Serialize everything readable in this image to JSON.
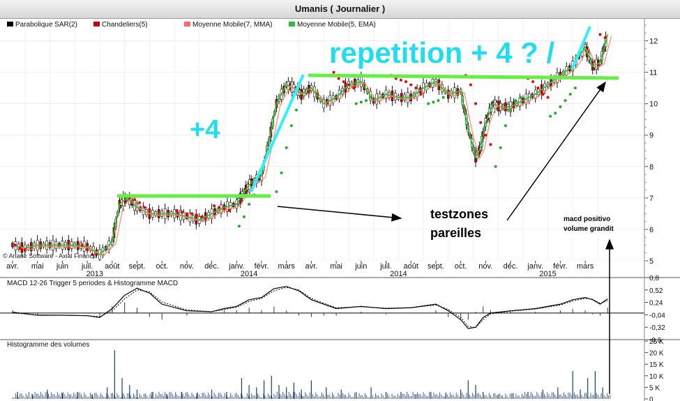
{
  "window": {
    "title": "Umanis  ( Journalier )"
  },
  "legend": [
    {
      "label": "Parabolique SAR(2)",
      "color": "#000000"
    },
    {
      "label": "Chandeliers(5)",
      "color": "#cc0000"
    },
    {
      "label": "Moyenne Mobile(7, MMA)",
      "color": "#ff6666"
    },
    {
      "label": "Moyenne Mobile(5, EMA)",
      "color": "#33bb33"
    }
  ],
  "copyright": "© Ariane Software - Axial Finance",
  "annotations": {
    "plus4": "+4",
    "repetition": "repetition + 4 ? /",
    "testzones_line1": "testzones",
    "testzones_line2": "pareilles",
    "macd_line1": "macd positivo",
    "macd_line2": "volume grandit"
  },
  "colors": {
    "price_green": "#33bb33",
    "sar_red": "#ee0000",
    "hline_green": "#66ee44",
    "cyan": "#33eeff",
    "annot_cyan": "#22ddee"
  },
  "chart_data": [
    {
      "type": "line",
      "title": "Umanis ( Journalier )",
      "y_axis_ticks": [
        "5",
        "6",
        "7",
        "8",
        "9",
        "10",
        "11",
        "12"
      ],
      "ylim": [
        5,
        12.7
      ],
      "x_tick_labels": [
        "avr.",
        "mai",
        "juin",
        "juil.",
        "août",
        "sept.",
        "oct.",
        "nov.",
        "déc.",
        "janv.",
        "févr.",
        "mars",
        "avr.",
        "mai",
        "juin",
        "juil.",
        "août",
        "sept.",
        "oct.",
        "nov.",
        "déc.",
        "janv.",
        "févr.",
        "mars"
      ],
      "year_labels": [
        "2013",
        "2014",
        "2014",
        "2015"
      ],
      "series": [
        {
          "name": "Moyenne Mobile(5, EMA)",
          "x_month_index": [
            0,
            0.5,
            1,
            1.5,
            2,
            2.5,
            3,
            3.5,
            4,
            4.3,
            4.6,
            5,
            5.5,
            6,
            6.5,
            7,
            7.5,
            8,
            8.5,
            9,
            9.3,
            9.6,
            10,
            10.3,
            10.6,
            11,
            11.3,
            11.6,
            12,
            12.5,
            13,
            13.5,
            14,
            14.5,
            15,
            15.5,
            16,
            16.5,
            17,
            17.5,
            18,
            18.3,
            18.6,
            18.8,
            19,
            19.3,
            19.6,
            20,
            20.5,
            21,
            21.5,
            22,
            22.5,
            23,
            23.3,
            23.6,
            23.9
          ],
          "values": [
            5.5,
            5.4,
            5.5,
            5.5,
            5.5,
            5.5,
            5.45,
            5.2,
            5.6,
            6.8,
            7.0,
            6.7,
            6.5,
            6.5,
            6.5,
            6.4,
            6.3,
            6.5,
            6.7,
            6.8,
            7.2,
            7.5,
            7.7,
            8.8,
            10.0,
            10.6,
            10.5,
            10.3,
            10.5,
            10.0,
            10.2,
            10.6,
            10.7,
            10.1,
            10.3,
            10.2,
            10.2,
            10.5,
            10.7,
            10.3,
            10.4,
            9.2,
            8.3,
            8.6,
            9.4,
            10.0,
            9.9,
            9.9,
            10.1,
            10.3,
            10.6,
            10.9,
            11.2,
            11.8,
            11.2,
            11.3,
            12.2
          ]
        },
        {
          "name": "Parabolique SAR(2) red",
          "x_month_index": [
            0.1,
            0.3,
            0.5,
            2.8,
            3.0,
            3.2,
            4.7,
            4.9,
            5.1,
            5.3,
            5.5,
            6.6,
            6.8,
            7.0,
            7.2,
            7.4,
            7.6,
            8.1,
            8.3,
            8.5,
            8.7,
            12.9,
            13.1,
            13.3,
            13.5,
            13.7,
            15.2,
            15.4,
            15.6,
            15.8,
            16.0,
            16.2,
            16.4,
            18.2,
            18.4,
            18.6,
            18.8,
            19.0,
            19.2,
            20.7,
            20.9,
            21.1,
            21.3,
            21.5,
            23.6,
            23.8
          ],
          "values": [
            5.5,
            5.4,
            5.35,
            5.5,
            5.35,
            5.2,
            7.0,
            6.95,
            6.85,
            6.7,
            6.6,
            6.6,
            6.55,
            6.5,
            6.5,
            6.45,
            6.4,
            6.75,
            6.7,
            6.65,
            6.6,
            11.0,
            10.8,
            10.7,
            10.6,
            10.5,
            10.9,
            10.8,
            10.75,
            10.7,
            10.6,
            10.5,
            10.3,
            10.9,
            10.6,
            10.0,
            9.4,
            9.0,
            8.7,
            10.8,
            10.7,
            10.5,
            10.3,
            10.2,
            12.2,
            12.1
          ]
        },
        {
          "name": "Parabolique SAR(2) green",
          "x_month_index": [
            9.1,
            9.3,
            9.5,
            9.7,
            10.6,
            10.8,
            11.0,
            11.2,
            11.4,
            13.8,
            14.0,
            14.2,
            14.4,
            16.7,
            16.9,
            17.1,
            17.3,
            19.4,
            19.6,
            19.8,
            20.0,
            20.2,
            20.4,
            21.6,
            21.8,
            22.0,
            22.2,
            22.4,
            22.6
          ],
          "values": [
            6.1,
            6.4,
            6.8,
            7.1,
            7.2,
            7.8,
            8.6,
            9.3,
            9.8,
            10.0,
            10.05,
            10.1,
            10.2,
            10.0,
            10.05,
            10.1,
            10.2,
            8.0,
            8.6,
            9.3,
            9.8,
            10.1,
            10.2,
            9.6,
            9.7,
            9.9,
            10.1,
            10.3,
            10.5
          ]
        }
      ]
    },
    {
      "type": "line",
      "title": "MACD 12-26   Trigger 5 periodes & Histogramme MACD",
      "y_axis_ticks": [
        "0,8",
        "0,52",
        "0,24",
        "-0,04",
        "-0,32",
        "-0,6"
      ],
      "ylim": [
        -0.6,
        0.8
      ],
      "series": [
        {
          "name": "MACD",
          "x_month_index": [
            0,
            1,
            2,
            3,
            3.5,
            4,
            4.5,
            5,
            5.5,
            6,
            7,
            8,
            8.5,
            9,
            9.5,
            10,
            10.5,
            11,
            11.5,
            12,
            12.5,
            13,
            14,
            15,
            16,
            17,
            17.5,
            18,
            18.3,
            18.6,
            18.9,
            19.2,
            20,
            21,
            22,
            22.5,
            23,
            23.3,
            23.6,
            23.9
          ],
          "values": [
            0.02,
            -0.05,
            -0.05,
            -0.06,
            -0.1,
            0.1,
            0.4,
            0.56,
            0.45,
            0.2,
            0.05,
            0.03,
            0.1,
            0.15,
            0.3,
            0.35,
            0.55,
            0.6,
            0.5,
            0.3,
            0.2,
            0.1,
            0.15,
            0.1,
            0.12,
            0.2,
            0.05,
            -0.15,
            -0.35,
            -0.32,
            -0.1,
            0.0,
            0.05,
            0.1,
            0.2,
            0.3,
            0.35,
            0.3,
            0.2,
            0.32
          ]
        },
        {
          "name": "Trigger",
          "x_month_index": [
            0,
            1,
            2,
            3,
            3.5,
            4,
            4.5,
            5,
            5.5,
            6,
            7,
            8,
            8.5,
            9,
            9.5,
            10,
            10.5,
            11,
            11.5,
            12,
            12.5,
            13,
            14,
            15,
            16,
            17,
            17.5,
            18,
            18.3,
            18.6,
            18.9,
            19.2,
            20,
            21,
            22,
            22.5,
            23,
            23.3,
            23.6,
            23.9
          ],
          "values": [
            0.0,
            -0.04,
            -0.05,
            -0.06,
            -0.08,
            0.05,
            0.32,
            0.52,
            0.48,
            0.25,
            0.07,
            0.03,
            0.08,
            0.13,
            0.26,
            0.33,
            0.5,
            0.58,
            0.52,
            0.33,
            0.22,
            0.12,
            0.14,
            0.11,
            0.12,
            0.18,
            0.08,
            -0.1,
            -0.3,
            -0.33,
            -0.15,
            -0.02,
            0.04,
            0.09,
            0.18,
            0.27,
            0.33,
            0.31,
            0.22,
            0.28
          ]
        }
      ]
    },
    {
      "type": "bar",
      "title": "Histogramme des volumes",
      "y_axis_ticks": [
        "25 K",
        "20 K",
        "15 K",
        "10 K",
        "5 K",
        "0"
      ],
      "ylim": [
        0,
        25000
      ],
      "x_month_index": [
        0.2,
        0.8,
        1.4,
        2.0,
        2.6,
        3.2,
        3.8,
        4.1,
        4.4,
        4.7,
        5.0,
        5.6,
        6.2,
        6.8,
        7.4,
        8.0,
        8.6,
        9.2,
        9.5,
        9.8,
        10.1,
        10.4,
        10.7,
        11.0,
        11.3,
        11.6,
        12.0,
        12.6,
        13.2,
        13.8,
        14.4,
        15.0,
        15.6,
        16.2,
        16.8,
        17.4,
        18.0,
        18.3,
        18.6,
        18.9,
        19.5,
        20.1,
        20.7,
        21.3,
        21.9,
        22.5,
        22.8,
        23.1,
        23.4,
        23.7
      ],
      "values": [
        3000,
        2000,
        4000,
        2500,
        3000,
        2000,
        5000,
        21000,
        9000,
        6000,
        4000,
        3000,
        2000,
        3000,
        2500,
        4000,
        3000,
        9000,
        6000,
        5000,
        8000,
        10000,
        6000,
        5000,
        7000,
        4000,
        8000,
        5000,
        4000,
        3000,
        5000,
        3000,
        3000,
        2000,
        3000,
        2500,
        4000,
        8000,
        6000,
        3000,
        2000,
        2500,
        3000,
        4000,
        5000,
        12000,
        4000,
        9000,
        12000,
        5000
      ]
    }
  ]
}
